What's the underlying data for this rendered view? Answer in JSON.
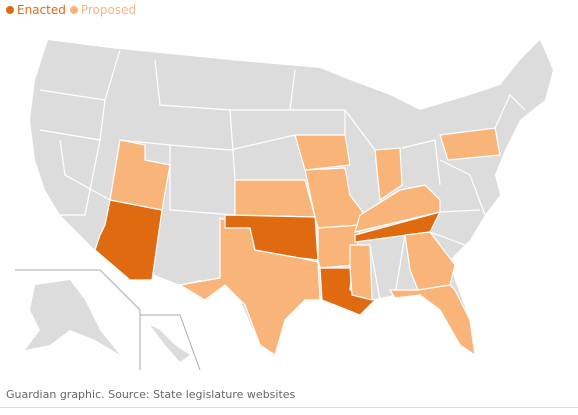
{
  "legend": [
    {
      "name": "Enacted",
      "color": "#e06a10"
    },
    {
      "name": "Proposed",
      "color": "#f9b47a"
    }
  ],
  "source": "Guardian graphic. Source: State legislature websites"
}
